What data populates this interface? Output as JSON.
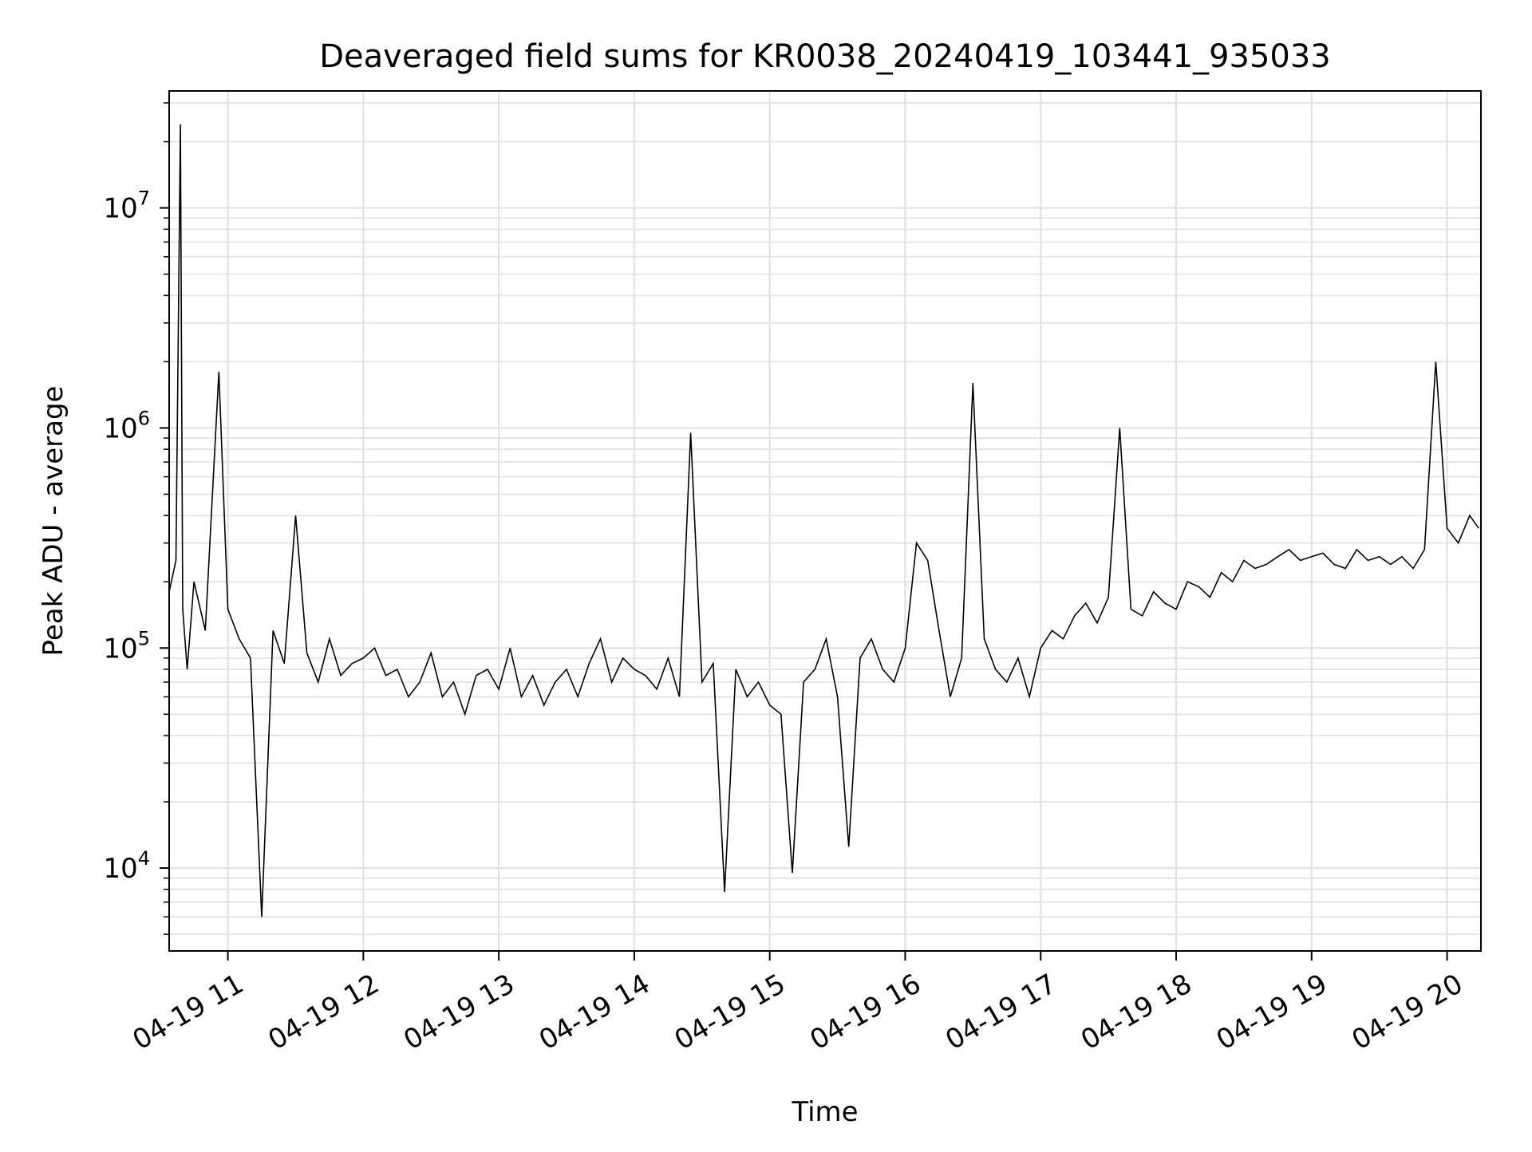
{
  "chart_data": {
    "type": "line",
    "title": "Deaveraged field sums for KR0038_20240419_103441_935033",
    "xlabel": "Time",
    "ylabel": "Peak ADU - average",
    "yscale": "log",
    "grid": true,
    "grid_minor": true,
    "legend": "none",
    "line_color": "#000000",
    "xlim": [
      "2024-04-19 10:34",
      "2024-04-19 20:15"
    ],
    "ylim": [
      4200,
      34000000
    ],
    "x_ticks": [
      {
        "value": "2024-04-19 11:00",
        "label": "04-19 11"
      },
      {
        "value": "2024-04-19 12:00",
        "label": "04-19 12"
      },
      {
        "value": "2024-04-19 13:00",
        "label": "04-19 13"
      },
      {
        "value": "2024-04-19 14:00",
        "label": "04-19 14"
      },
      {
        "value": "2024-04-19 15:00",
        "label": "04-19 15"
      },
      {
        "value": "2024-04-19 16:00",
        "label": "04-19 16"
      },
      {
        "value": "2024-04-19 17:00",
        "label": "04-19 17"
      },
      {
        "value": "2024-04-19 18:00",
        "label": "04-19 18"
      },
      {
        "value": "2024-04-19 19:00",
        "label": "04-19 19"
      },
      {
        "value": "2024-04-19 20:00",
        "label": "04-19 20"
      }
    ],
    "y_ticks": [
      {
        "value": 10000,
        "base": "10",
        "exp": "4"
      },
      {
        "value": 100000,
        "base": "10",
        "exp": "5"
      },
      {
        "value": 1000000,
        "base": "10",
        "exp": "6"
      },
      {
        "value": 10000000,
        "base": "10",
        "exp": "7"
      }
    ],
    "series": [
      {
        "x": [
          "2024-04-19 10:34",
          "2024-04-19 10:37",
          "2024-04-19 10:39",
          "2024-04-19 10:40",
          "2024-04-19 10:42",
          "2024-04-19 10:45",
          "2024-04-19 10:50",
          "2024-04-19 10:56",
          "2024-04-19 11:00",
          "2024-04-19 11:05",
          "2024-04-19 11:10",
          "2024-04-19 11:15",
          "2024-04-19 11:20",
          "2024-04-19 11:25",
          "2024-04-19 11:30",
          "2024-04-19 11:35",
          "2024-04-19 11:40",
          "2024-04-19 11:45",
          "2024-04-19 11:50",
          "2024-04-19 11:55",
          "2024-04-19 12:00",
          "2024-04-19 12:05",
          "2024-04-19 12:10",
          "2024-04-19 12:15",
          "2024-04-19 12:20",
          "2024-04-19 12:25",
          "2024-04-19 12:30",
          "2024-04-19 12:35",
          "2024-04-19 12:40",
          "2024-04-19 12:45",
          "2024-04-19 12:50",
          "2024-04-19 12:55",
          "2024-04-19 13:00",
          "2024-04-19 13:05",
          "2024-04-19 13:10",
          "2024-04-19 13:15",
          "2024-04-19 13:20",
          "2024-04-19 13:25",
          "2024-04-19 13:30",
          "2024-04-19 13:35",
          "2024-04-19 13:40",
          "2024-04-19 13:45",
          "2024-04-19 13:50",
          "2024-04-19 13:55",
          "2024-04-19 14:00",
          "2024-04-19 14:05",
          "2024-04-19 14:10",
          "2024-04-19 14:15",
          "2024-04-19 14:20",
          "2024-04-19 14:25",
          "2024-04-19 14:30",
          "2024-04-19 14:35",
          "2024-04-19 14:40",
          "2024-04-19 14:45",
          "2024-04-19 14:50",
          "2024-04-19 14:55",
          "2024-04-19 15:00",
          "2024-04-19 15:05",
          "2024-04-19 15:10",
          "2024-04-19 15:15",
          "2024-04-19 15:20",
          "2024-04-19 15:25",
          "2024-04-19 15:30",
          "2024-04-19 15:35",
          "2024-04-19 15:40",
          "2024-04-19 15:45",
          "2024-04-19 15:50",
          "2024-04-19 15:55",
          "2024-04-19 16:00",
          "2024-04-19 16:05",
          "2024-04-19 16:10",
          "2024-04-19 16:15",
          "2024-04-19 16:20",
          "2024-04-19 16:25",
          "2024-04-19 16:30",
          "2024-04-19 16:35",
          "2024-04-19 16:40",
          "2024-04-19 16:45",
          "2024-04-19 16:50",
          "2024-04-19 16:55",
          "2024-04-19 17:00",
          "2024-04-19 17:05",
          "2024-04-19 17:10",
          "2024-04-19 17:15",
          "2024-04-19 17:20",
          "2024-04-19 17:25",
          "2024-04-19 17:30",
          "2024-04-19 17:35",
          "2024-04-19 17:40",
          "2024-04-19 17:45",
          "2024-04-19 17:50",
          "2024-04-19 17:55",
          "2024-04-19 18:00",
          "2024-04-19 18:05",
          "2024-04-19 18:10",
          "2024-04-19 18:15",
          "2024-04-19 18:20",
          "2024-04-19 18:25",
          "2024-04-19 18:30",
          "2024-04-19 18:35",
          "2024-04-19 18:40",
          "2024-04-19 18:45",
          "2024-04-19 18:50",
          "2024-04-19 18:55",
          "2024-04-19 19:00",
          "2024-04-19 19:05",
          "2024-04-19 19:10",
          "2024-04-19 19:15",
          "2024-04-19 19:20",
          "2024-04-19 19:25",
          "2024-04-19 19:30",
          "2024-04-19 19:35",
          "2024-04-19 19:40",
          "2024-04-19 19:45",
          "2024-04-19 19:50",
          "2024-04-19 19:55",
          "2024-04-19 20:00",
          "2024-04-19 20:05",
          "2024-04-19 20:10",
          "2024-04-19 20:14"
        ],
        "y": [
          180000,
          250000,
          24000000,
          150000,
          80000,
          200000,
          120000,
          1800000,
          150000,
          110000,
          90000,
          6000,
          120000,
          85000,
          400000,
          95000,
          70000,
          110000,
          75000,
          85000,
          90000,
          100000,
          75000,
          80000,
          60000,
          70000,
          95000,
          60000,
          70000,
          50000,
          75000,
          80000,
          65000,
          100000,
          60000,
          75000,
          55000,
          70000,
          80000,
          60000,
          85000,
          110000,
          70000,
          90000,
          80000,
          75000,
          65000,
          90000,
          60000,
          950000,
          70000,
          85000,
          7800,
          80000,
          60000,
          70000,
          55000,
          50000,
          9500,
          70000,
          80000,
          110000,
          60000,
          12500,
          90000,
          110000,
          80000,
          70000,
          100000,
          300000,
          250000,
          120000,
          60000,
          90000,
          1600000,
          110000,
          80000,
          70000,
          90000,
          60000,
          100000,
          120000,
          110000,
          140000,
          160000,
          130000,
          170000,
          1000000,
          150000,
          140000,
          180000,
          160000,
          150000,
          200000,
          190000,
          170000,
          220000,
          200000,
          250000,
          230000,
          240000,
          260000,
          280000,
          250000,
          260000,
          270000,
          240000,
          230000,
          280000,
          250000,
          260000,
          240000,
          260000,
          230000,
          280000,
          2000000,
          350000,
          300000,
          400000,
          350000
        ]
      }
    ]
  }
}
